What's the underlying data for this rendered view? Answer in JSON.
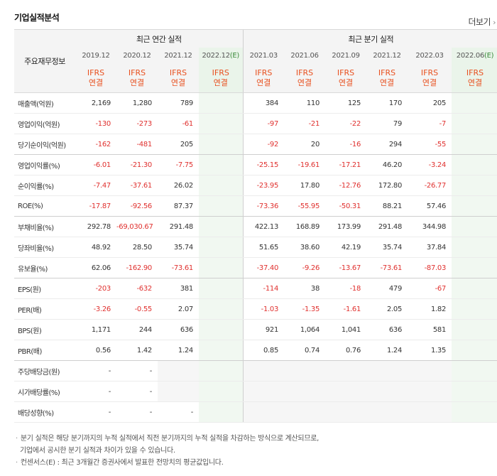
{
  "title": "기업실적분석",
  "more_label": "더보기",
  "more_arrow": "›",
  "row_header": "주요재무정보",
  "annual_header": "최근 연간 실적",
  "quarter_header": "최근 분기 실적",
  "periods": [
    "2019.12",
    "2020.12",
    "2021.12",
    "2022.12",
    "2021.03",
    "2021.06",
    "2021.09",
    "2021.12",
    "2022.03",
    "2022.06"
  ],
  "estimate_mark": "(E)",
  "basis": {
    "line1": "IFRS",
    "line2": "연결"
  },
  "rows": [
    {
      "label": "매출액(억원)",
      "values": [
        "2,169",
        "1,280",
        "789",
        "",
        "384",
        "110",
        "125",
        "170",
        "205",
        ""
      ]
    },
    {
      "label": "영업이익(억원)",
      "values": [
        "-130",
        "-273",
        "-61",
        "",
        "-97",
        "-21",
        "-22",
        "79",
        "-7",
        ""
      ]
    },
    {
      "label": "당기순이익(억원)",
      "values": [
        "-162",
        "-481",
        "205",
        "",
        "-92",
        "20",
        "-16",
        "294",
        "-55",
        ""
      ]
    },
    {
      "label": "영업이익률(%)",
      "values": [
        "-6.01",
        "-21.30",
        "-7.75",
        "",
        "-25.15",
        "-19.61",
        "-17.21",
        "46.20",
        "-3.24",
        ""
      ]
    },
    {
      "label": "순이익률(%)",
      "values": [
        "-7.47",
        "-37.61",
        "26.02",
        "",
        "-23.95",
        "17.80",
        "-12.76",
        "172.80",
        "-26.77",
        ""
      ]
    },
    {
      "label": "ROE(%)",
      "values": [
        "-17.87",
        "-92.56",
        "87.37",
        "",
        "-73.36",
        "-55.95",
        "-50.31",
        "88.21",
        "57.46",
        ""
      ]
    },
    {
      "label": "부채비율(%)",
      "values": [
        "292.78",
        "-69,030.67",
        "291.48",
        "",
        "422.13",
        "168.89",
        "173.99",
        "291.48",
        "344.98",
        ""
      ]
    },
    {
      "label": "당좌비율(%)",
      "values": [
        "48.92",
        "28.50",
        "35.74",
        "",
        "51.65",
        "38.60",
        "42.19",
        "35.74",
        "37.84",
        ""
      ]
    },
    {
      "label": "유보율(%)",
      "values": [
        "62.06",
        "-162.90",
        "-73.61",
        "",
        "-37.40",
        "-9.26",
        "-13.67",
        "-73.61",
        "-87.03",
        ""
      ]
    },
    {
      "label": "EPS(원)",
      "values": [
        "-203",
        "-632",
        "381",
        "",
        "-114",
        "38",
        "-18",
        "479",
        "-67",
        ""
      ]
    },
    {
      "label": "PER(배)",
      "values": [
        "-3.26",
        "-0.55",
        "2.07",
        "",
        "-1.03",
        "-1.35",
        "-1.61",
        "2.05",
        "1.82",
        ""
      ]
    },
    {
      "label": "BPS(원)",
      "values": [
        "1,171",
        "244",
        "636",
        "",
        "921",
        "1,064",
        "1,041",
        "636",
        "581",
        ""
      ]
    },
    {
      "label": "PBR(배)",
      "values": [
        "0.56",
        "1.42",
        "1.24",
        "",
        "0.85",
        "0.74",
        "0.76",
        "1.24",
        "1.35",
        ""
      ]
    },
    {
      "label": "주당배당금(원)",
      "values": [
        "-",
        "-",
        "",
        "",
        "",
        "",
        "",
        "",
        "",
        ""
      ]
    },
    {
      "label": "시가배당률(%)",
      "values": [
        "-",
        "-",
        "",
        "",
        "",
        "",
        "",
        "",
        "",
        ""
      ]
    },
    {
      "label": "배당성향(%)",
      "values": [
        "-",
        "-",
        "-",
        "",
        "",
        "",
        "",
        "",
        "",
        ""
      ]
    }
  ],
  "notes": [
    "분기 실적은 해당 분기까지의 누적 실적에서 직전 분기까지의 누적 실적을 차감하는 방식으로 계산되므로,",
    "기업에서 공시한 분기 실적과 차이가 있을 수 있습니다.",
    "컨센서스(E) : 최근 3개월간 증권사에서 발표한 전망치의 평균값입니다."
  ],
  "colors": {
    "negative": "#e0302e",
    "ifrs": "#e8501f",
    "estimate_bg": "#f1f8f1",
    "estimate_mark": "#3a8a3a"
  }
}
